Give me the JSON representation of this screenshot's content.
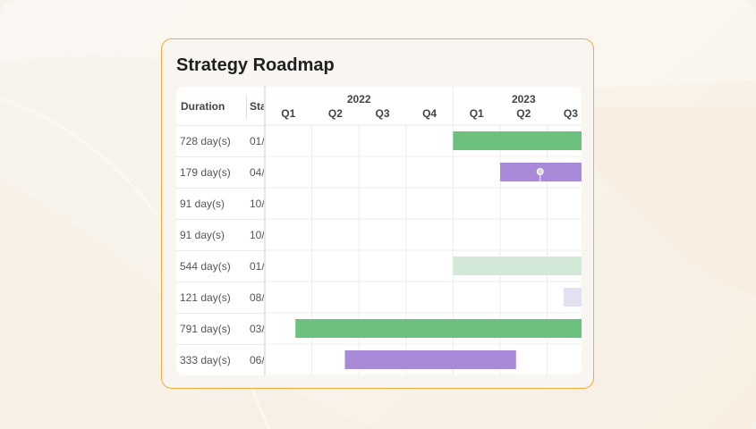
{
  "title": "Strategy Roadmap",
  "columns": {
    "duration": "Duration",
    "start": "Start"
  },
  "timeline": {
    "years": [
      {
        "label": "2022"
      },
      {
        "label": "2023"
      }
    ],
    "quarters": [
      "Q1",
      "Q2",
      "Q3",
      "Q4",
      "Q1",
      "Q2",
      "Q3"
    ]
  },
  "rows": [
    {
      "duration": "728 day(s)",
      "start": "01/"
    },
    {
      "duration": "179 day(s)",
      "start": "04/"
    },
    {
      "duration": "91 day(s)",
      "start": "10/"
    },
    {
      "duration": "91 day(s)",
      "start": "10/"
    },
    {
      "duration": "544 day(s)",
      "start": "01/"
    },
    {
      "duration": "121 day(s)",
      "start": "08/"
    },
    {
      "duration": "791 day(s)",
      "start": "03/"
    },
    {
      "duration": "333 day(s)",
      "start": "06/"
    }
  ],
  "bars": [
    {
      "row": 0,
      "start_q": 4.0,
      "end_q": 7.0,
      "color": "#6cc17e",
      "type": "task"
    },
    {
      "row": 1,
      "start_q": 5.0,
      "end_q": 7.0,
      "color": "#a98ad9",
      "type": "task",
      "milestone": true
    },
    {
      "row": 4,
      "start_q": 4.0,
      "end_q": 7.0,
      "color": "#d3e9d8",
      "type": "task"
    },
    {
      "row": 5,
      "start_q": 6.35,
      "end_q": 7.0,
      "color": "#e2e1f1",
      "type": "task"
    },
    {
      "row": 6,
      "start_q": 0.65,
      "end_q": 7.0,
      "color": "#6cc17e",
      "type": "task"
    },
    {
      "row": 7,
      "start_q": 1.7,
      "end_q": 5.3,
      "color": "#a98ad9",
      "type": "task"
    }
  ],
  "colors": {
    "accent_border": "#f0ad3e",
    "green": "#6cc17e",
    "purple": "#a98ad9",
    "light_green": "#d3e9d8",
    "light_purple": "#e2e1f1"
  }
}
